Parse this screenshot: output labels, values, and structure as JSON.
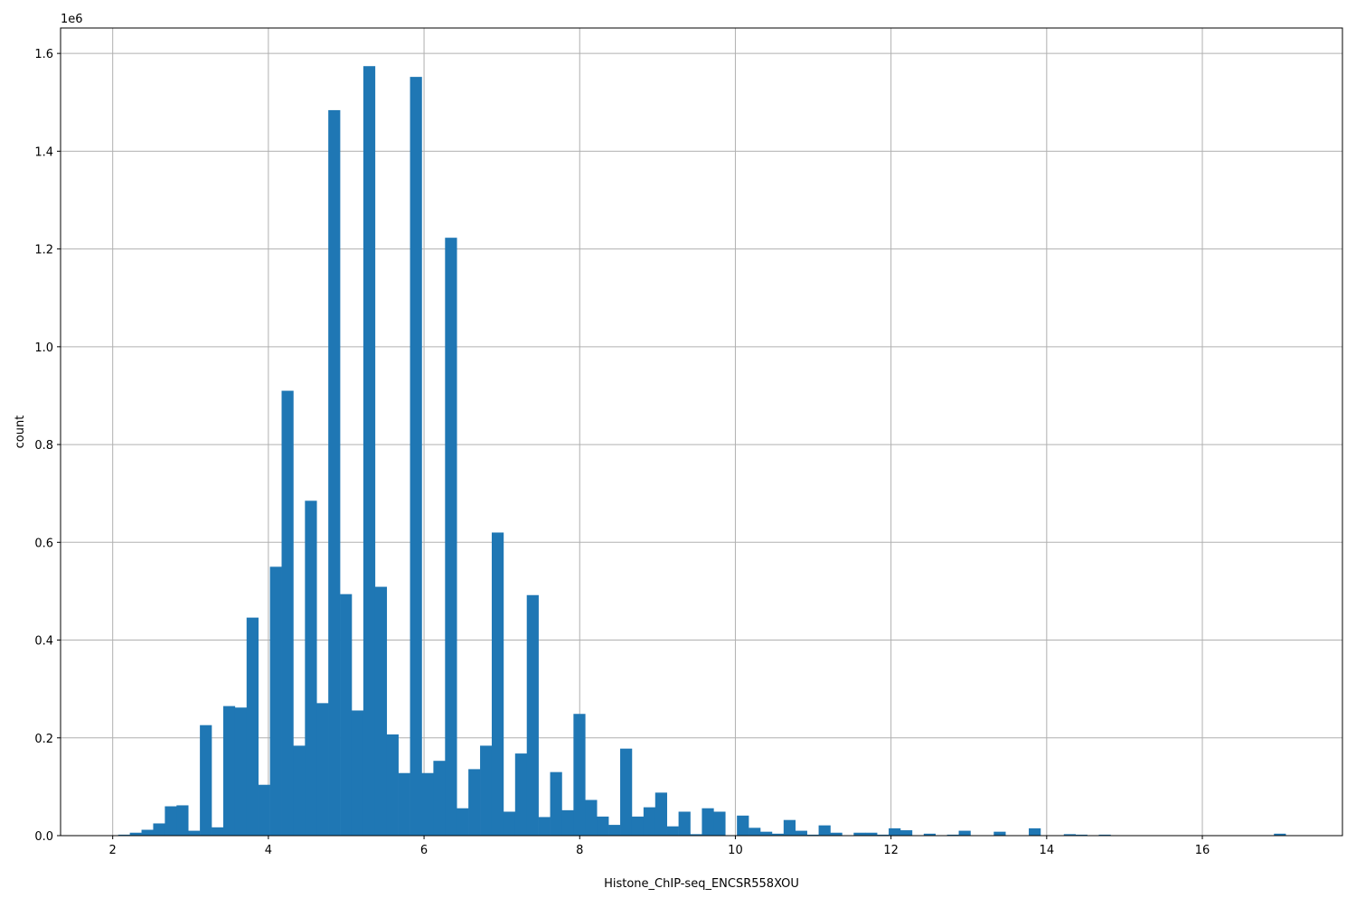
{
  "chart_data": {
    "type": "bar",
    "subtype": "histogram",
    "xlabel": "Histone_ChIP-seq_ENCSR558XOU",
    "ylabel": "count",
    "y_offset_label": "1e6",
    "xlim": [
      1.33,
      17.8
    ],
    "ylim": [
      0,
      1652000
    ],
    "grid": true,
    "bar_color": "#1f77b4",
    "grid_color": "#b0b0b0",
    "bin_start": 2.07,
    "bin_width": 0.15,
    "x_ticks": [
      2,
      4,
      6,
      8,
      10,
      12,
      14,
      16
    ],
    "x_tick_labels": [
      "2",
      "4",
      "6",
      "8",
      "10",
      "12",
      "14",
      "16"
    ],
    "y_ticks": [
      0,
      200000,
      400000,
      600000,
      800000,
      1000000,
      1200000,
      1400000,
      1600000
    ],
    "y_tick_labels": [
      "0.0",
      "0.2",
      "0.4",
      "0.6",
      "0.8",
      "1.0",
      "1.2",
      "1.4",
      "1.6"
    ],
    "values": [
      2000,
      6000,
      12000,
      25000,
      60000,
      62000,
      10000,
      226000,
      17000,
      265000,
      262000,
      446000,
      104000,
      550000,
      910000,
      184000,
      685000,
      271000,
      1484000,
      494000,
      256000,
      1574000,
      509000,
      207000,
      128000,
      1552000,
      128000,
      153000,
      1223000,
      56000,
      136000,
      184000,
      620000,
      49000,
      168000,
      492000,
      38000,
      130000,
      52000,
      249000,
      73000,
      39000,
      22000,
      178000,
      39000,
      58000,
      88000,
      19000,
      49000,
      3000,
      56000,
      49000,
      0,
      41000,
      16000,
      8000,
      4000,
      32000,
      10000,
      2000,
      21000,
      6000,
      0,
      6000,
      6000,
      2000,
      15000,
      11000,
      0,
      4000,
      0,
      2000,
      10000,
      0,
      0,
      8000,
      0,
      0,
      15000,
      0,
      0,
      3000,
      2000,
      0,
      2000,
      0,
      0,
      0,
      0,
      0,
      0,
      0,
      0,
      0,
      0,
      0,
      0,
      0,
      0,
      4000
    ]
  }
}
